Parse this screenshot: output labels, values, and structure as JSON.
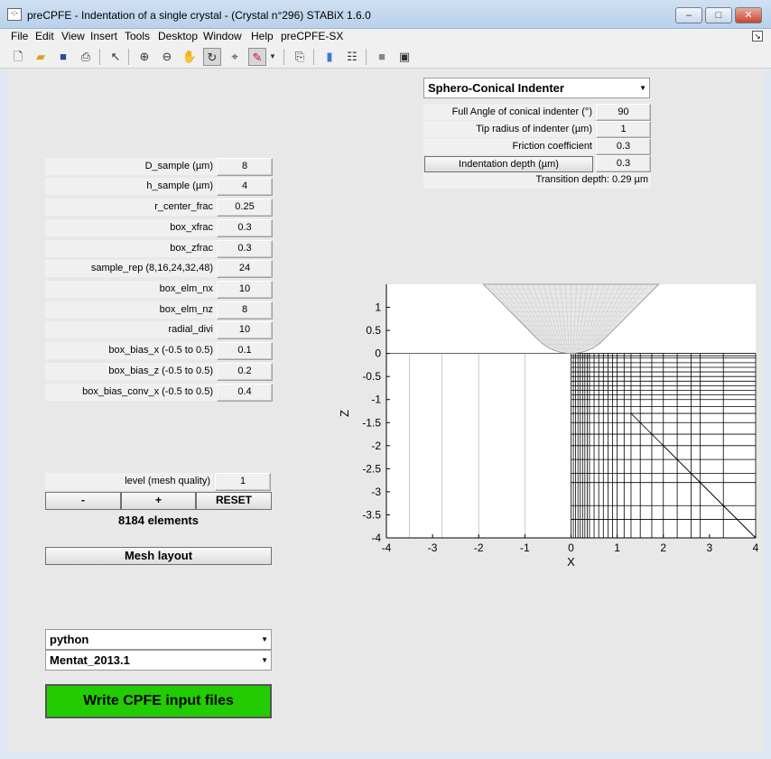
{
  "window": {
    "title": "preCPFE - Indentation of a single crystal -  (Crystal n°296) STABiX 1.6.0",
    "icon_text": "-:-",
    "min": "–",
    "max": "□",
    "close": "✕"
  },
  "menu": [
    "File",
    "Edit",
    "View",
    "Insert",
    "Tools",
    "Desktop",
    "Window",
    "Help",
    "preCPFE-SX"
  ],
  "dock_icon": "↘",
  "toolbar": [
    "new-figure-icon",
    "open-icon",
    "save-icon",
    "print-icon",
    "pointer-icon",
    "zoom-in-icon",
    "zoom-out-icon",
    "pan-icon",
    "rotate-icon",
    "data-cursor-icon",
    "brush-icon",
    "brush-dropdown-icon",
    "link-icon",
    "colorbar-icon",
    "legend-icon",
    "hide-tools-icon",
    "show-tools-icon"
  ],
  "indenter": {
    "type": "Sphero-Conical Indenter",
    "fields": [
      {
        "label": "Full Angle of conical indenter (°)",
        "value": "90"
      },
      {
        "label": "Tip radius of indenter (µm)",
        "value": "1"
      },
      {
        "label": "Friction coefficient",
        "value": "0.3"
      }
    ],
    "depth_button": "Indentation depth (µm)",
    "depth_value": "0.3",
    "transition": "Transition depth: 0.29 µm"
  },
  "params": [
    {
      "label": "D_sample (µm)",
      "value": "8"
    },
    {
      "label": "h_sample (µm)",
      "value": "4"
    },
    {
      "label": "r_center_frac",
      "value": "0.25"
    },
    {
      "label": "box_xfrac",
      "value": "0.3"
    },
    {
      "label": "box_zfrac",
      "value": "0.3"
    },
    {
      "label": "sample_rep (8,16,24,32,48)",
      "value": "24"
    },
    {
      "label": "box_elm_nx",
      "value": "10"
    },
    {
      "label": "box_elm_nz",
      "value": "8"
    },
    {
      "label": "radial_divi",
      "value": "10"
    },
    {
      "label": "box_bias_x (-0.5 to 0.5)",
      "value": "0.1"
    },
    {
      "label": "box_bias_z (-0.5 to 0.5)",
      "value": "0.2"
    },
    {
      "label": "box_bias_conv_x (-0.5 to 0.5)",
      "value": "0.4"
    }
  ],
  "mesh": {
    "level_label": "level (mesh quality)",
    "level_value": "1",
    "minus": "-",
    "plus": "+",
    "reset": "RESET",
    "elements": "8184 elements",
    "layout_button": "Mesh layout"
  },
  "software": {
    "language": "python",
    "fem": "Mentat_2013.1"
  },
  "write_button": "Write CPFE  input files",
  "plot": {
    "xlabel": "X",
    "ylabel": "Z",
    "xticks": [
      "-4",
      "-3",
      "-2",
      "-1",
      "0",
      "1",
      "2",
      "3",
      "4"
    ],
    "yticks": [
      "1",
      "0.5",
      "0",
      "-0.5",
      "-1",
      "-1.5",
      "-2",
      "-2.5",
      "-3",
      "-3.5",
      "-4"
    ]
  }
}
